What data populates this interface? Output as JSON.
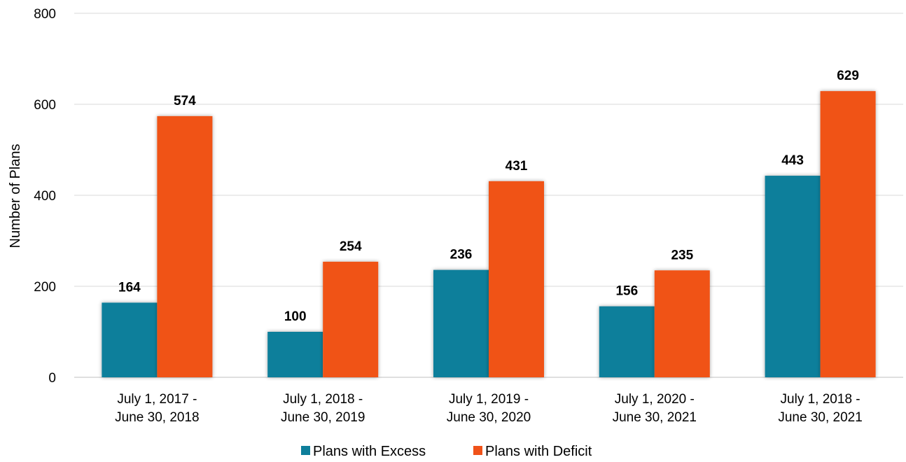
{
  "chart_data": {
    "type": "bar",
    "title": "",
    "xlabel": "",
    "ylabel": "Number of Plans",
    "ylim": [
      0,
      800
    ],
    "yticks": [
      0,
      200,
      400,
      600,
      800
    ],
    "grid": true,
    "legend_position": "bottom",
    "categories": [
      [
        "July 1, 2017 -",
        "June 30, 2018"
      ],
      [
        "July 1, 2018 -",
        "June 30, 2019"
      ],
      [
        "July 1, 2019 -",
        "June 30, 2020"
      ],
      [
        "July 1, 2020 -",
        "June 30, 2021"
      ],
      [
        "July 1, 2018 -",
        "June 30, 2021"
      ]
    ],
    "series": [
      {
        "name": "Plans with Excess",
        "color": "#0e7f9b",
        "values": [
          164,
          100,
          236,
          156,
          443
        ]
      },
      {
        "name": "Plans with Deficit",
        "color": "#f05219",
        "values": [
          574,
          254,
          431,
          235,
          629
        ]
      }
    ]
  }
}
